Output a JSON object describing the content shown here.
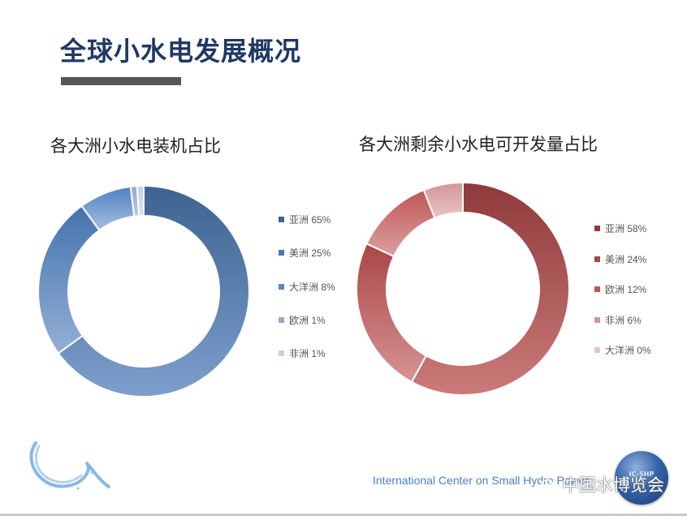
{
  "slide": {
    "title": "全球小水电发展概况",
    "footer_text": "International Center on Small Hydro Power",
    "watermark": "中国水博览会",
    "logo_text": "IC-SHP"
  },
  "chart_data": [
    {
      "type": "pie",
      "variant": "donut",
      "title": "各大洲小水电装机占比",
      "categories": [
        "亚洲",
        "美洲",
        "大洋洲",
        "欧洲",
        "非洲"
      ],
      "values": [
        65,
        25,
        8,
        1,
        1
      ],
      "unit": "%",
      "legend": [
        "亚洲 65%",
        "美洲 25%",
        "大洋洲 8%",
        "欧洲 1%",
        "非洲 1%"
      ],
      "legend_position": "right",
      "colors": [
        "#3d6391",
        "#4a78b0",
        "#5c8ac4",
        "#93acd1",
        "#c3d0e5"
      ]
    },
    {
      "type": "pie",
      "variant": "donut",
      "title": "各大洲剩余小水电可开发量占比",
      "categories": [
        "亚洲",
        "美洲",
        "欧洲",
        "非洲",
        "大洋洲"
      ],
      "values": [
        58,
        24,
        12,
        6,
        0
      ],
      "unit": "%",
      "legend": [
        "亚洲 58%",
        "美洲 24%",
        "欧洲 12%",
        "非洲 6%",
        "大洋洲 0%"
      ],
      "legend_position": "right",
      "colors": [
        "#8e3a3a",
        "#a94646",
        "#c05656",
        "#d49696",
        "#e8c3c3"
      ]
    }
  ]
}
